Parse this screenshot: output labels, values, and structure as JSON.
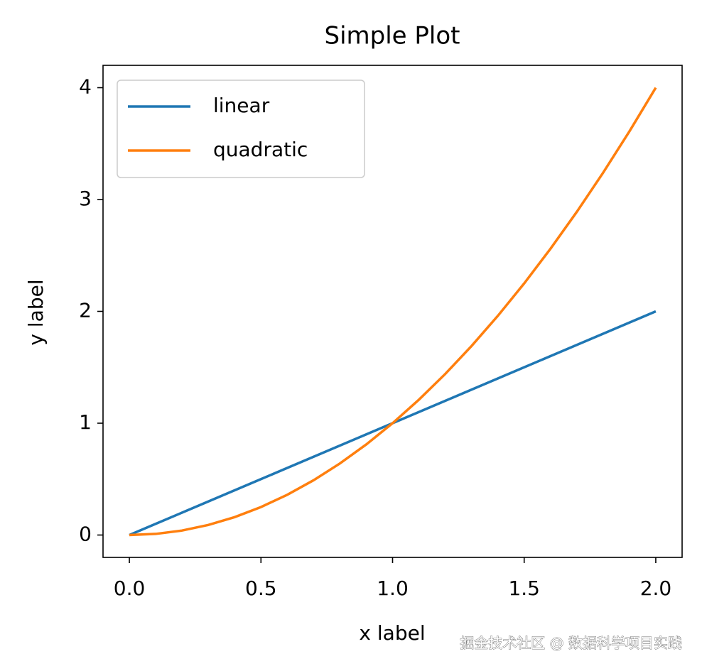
{
  "chart_data": {
    "type": "line",
    "title": "Simple Plot",
    "x_label": "x label",
    "y_label": "y label",
    "x": [
      0,
      0.1,
      0.2,
      0.3,
      0.4,
      0.5,
      0.6,
      0.7,
      0.8,
      0.9,
      1.0,
      1.1,
      1.2,
      1.3,
      1.4,
      1.5,
      1.6,
      1.7,
      1.8,
      1.9,
      2.0
    ],
    "series": [
      {
        "name": "linear",
        "color": "#1f77b4",
        "values": [
          0,
          0.1,
          0.2,
          0.3,
          0.4,
          0.5,
          0.6,
          0.7,
          0.8,
          0.9,
          1.0,
          1.1,
          1.2,
          1.3,
          1.4,
          1.5,
          1.6,
          1.7,
          1.8,
          1.9,
          2.0
        ]
      },
      {
        "name": "quadratic",
        "color": "#ff7f0e",
        "values": [
          0,
          0.01,
          0.04,
          0.09,
          0.16,
          0.25,
          0.36,
          0.49,
          0.64,
          0.81,
          1.0,
          1.21,
          1.44,
          1.69,
          1.96,
          2.25,
          2.56,
          2.89,
          3.24,
          3.61,
          4.0
        ]
      }
    ],
    "xlim": [
      -0.1,
      2.1
    ],
    "ylim": [
      -0.2,
      4.2
    ],
    "xticks": [
      {
        "value": 0,
        "label": "0.0"
      },
      0.5,
      {
        "value": 1,
        "label": "1.0"
      },
      1.5,
      {
        "value": 2,
        "label": "2.0"
      }
    ],
    "yticks": [
      0,
      1,
      2,
      3,
      4
    ],
    "grid": false,
    "legend": "upper left",
    "watermark": "掘金技术社区 @ 数据科学项目实践"
  }
}
